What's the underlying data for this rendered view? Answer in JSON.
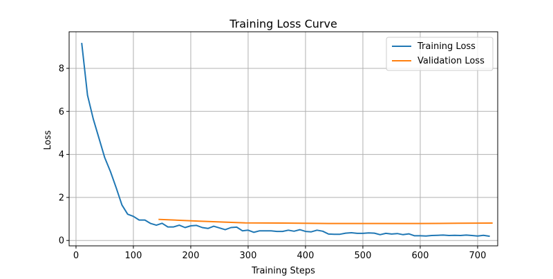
{
  "chart_data": {
    "type": "line",
    "title": "Training Loss Curve",
    "xlabel": "Training Steps",
    "ylabel": "Loss",
    "xlim": [
      -12,
      735
    ],
    "ylim": [
      -0.25,
      9.7
    ],
    "x_ticks": [
      0,
      100,
      200,
      300,
      400,
      500,
      600,
      700
    ],
    "y_ticks": [
      0,
      2,
      4,
      6,
      8
    ],
    "grid": true,
    "legend_position": "top-right",
    "series": [
      {
        "name": "Training Loss",
        "color": "#1f77b4",
        "points": [
          [
            10,
            9.15
          ],
          [
            20,
            6.75
          ],
          [
            30,
            5.65
          ],
          [
            40,
            4.75
          ],
          [
            50,
            3.85
          ],
          [
            60,
            3.2
          ],
          [
            70,
            2.45
          ],
          [
            80,
            1.65
          ],
          [
            90,
            1.22
          ],
          [
            100,
            1.12
          ],
          [
            110,
            0.95
          ],
          [
            120,
            0.95
          ],
          [
            130,
            0.79
          ],
          [
            140,
            0.71
          ],
          [
            150,
            0.8
          ],
          [
            160,
            0.63
          ],
          [
            170,
            0.63
          ],
          [
            180,
            0.71
          ],
          [
            190,
            0.6
          ],
          [
            200,
            0.68
          ],
          [
            210,
            0.7
          ],
          [
            220,
            0.6
          ],
          [
            230,
            0.56
          ],
          [
            240,
            0.66
          ],
          [
            250,
            0.58
          ],
          [
            260,
            0.5
          ],
          [
            270,
            0.6
          ],
          [
            280,
            0.62
          ],
          [
            290,
            0.45
          ],
          [
            300,
            0.48
          ],
          [
            310,
            0.38
          ],
          [
            320,
            0.45
          ],
          [
            330,
            0.45
          ],
          [
            340,
            0.45
          ],
          [
            350,
            0.42
          ],
          [
            360,
            0.42
          ],
          [
            370,
            0.48
          ],
          [
            380,
            0.43
          ],
          [
            390,
            0.5
          ],
          [
            400,
            0.42
          ],
          [
            410,
            0.4
          ],
          [
            420,
            0.48
          ],
          [
            430,
            0.43
          ],
          [
            440,
            0.3
          ],
          [
            450,
            0.29
          ],
          [
            460,
            0.29
          ],
          [
            470,
            0.34
          ],
          [
            480,
            0.36
          ],
          [
            490,
            0.33
          ],
          [
            500,
            0.33
          ],
          [
            510,
            0.35
          ],
          [
            520,
            0.34
          ],
          [
            530,
            0.27
          ],
          [
            540,
            0.33
          ],
          [
            550,
            0.3
          ],
          [
            560,
            0.32
          ],
          [
            570,
            0.27
          ],
          [
            580,
            0.31
          ],
          [
            590,
            0.22
          ],
          [
            600,
            0.22
          ],
          [
            610,
            0.21
          ],
          [
            620,
            0.23
          ],
          [
            630,
            0.24
          ],
          [
            640,
            0.25
          ],
          [
            650,
            0.23
          ],
          [
            660,
            0.24
          ],
          [
            670,
            0.23
          ],
          [
            680,
            0.25
          ],
          [
            690,
            0.23
          ],
          [
            700,
            0.21
          ],
          [
            710,
            0.24
          ],
          [
            720,
            0.2
          ]
        ]
      },
      {
        "name": "Validation Loss",
        "color": "#ff7f0e",
        "points": [
          [
            145,
            0.98
          ],
          [
            215,
            0.9
          ],
          [
            295,
            0.82
          ],
          [
            360,
            0.81
          ],
          [
            440,
            0.79
          ],
          [
            520,
            0.79
          ],
          [
            600,
            0.79
          ],
          [
            665,
            0.8
          ],
          [
            725,
            0.81
          ]
        ]
      }
    ]
  }
}
